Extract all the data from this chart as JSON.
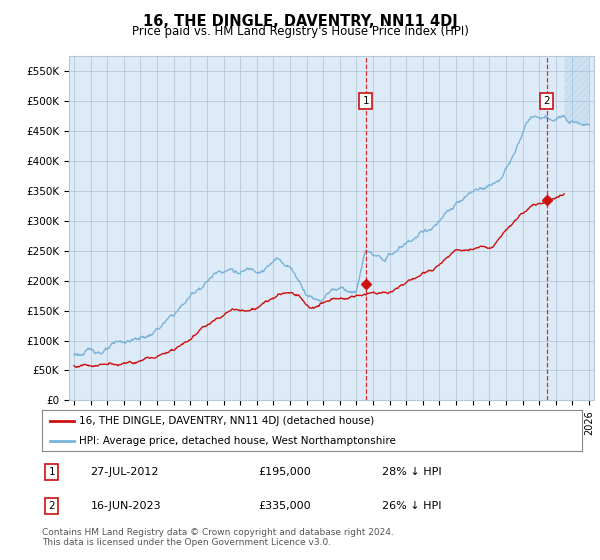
{
  "title": "16, THE DINGLE, DAVENTRY, NN11 4DJ",
  "subtitle": "Price paid vs. HM Land Registry's House Price Index (HPI)",
  "ylabel_ticks": [
    "£0",
    "£50K",
    "£100K",
    "£150K",
    "£200K",
    "£250K",
    "£300K",
    "£350K",
    "£400K",
    "£450K",
    "£500K",
    "£550K"
  ],
  "ytick_values": [
    0,
    50000,
    100000,
    150000,
    200000,
    250000,
    300000,
    350000,
    400000,
    450000,
    500000,
    550000
  ],
  "ylim": [
    0,
    575000
  ],
  "xlim_start": 1994.7,
  "xlim_end": 2026.3,
  "hpi_color": "#7ab4d8",
  "price_color": "#cc1111",
  "bg_color": "#ddeaf7",
  "grid_color": "#b8c8d8",
  "point1_x": 2012.57,
  "point1_y": 195000,
  "point2_x": 2023.46,
  "point2_y": 335000,
  "legend_line1": "16, THE DINGLE, DAVENTRY, NN11 4DJ (detached house)",
  "legend_line2": "HPI: Average price, detached house, West Northamptonshire",
  "point1_date": "27-JUL-2012",
  "point1_price": "£195,000",
  "point1_hpi": "28% ↓ HPI",
  "point2_date": "16-JUN-2023",
  "point2_price": "£335,000",
  "point2_hpi": "26% ↓ HPI",
  "footer": "Contains HM Land Registry data © Crown copyright and database right 2024.\nThis data is licensed under the Open Government Licence v3.0."
}
